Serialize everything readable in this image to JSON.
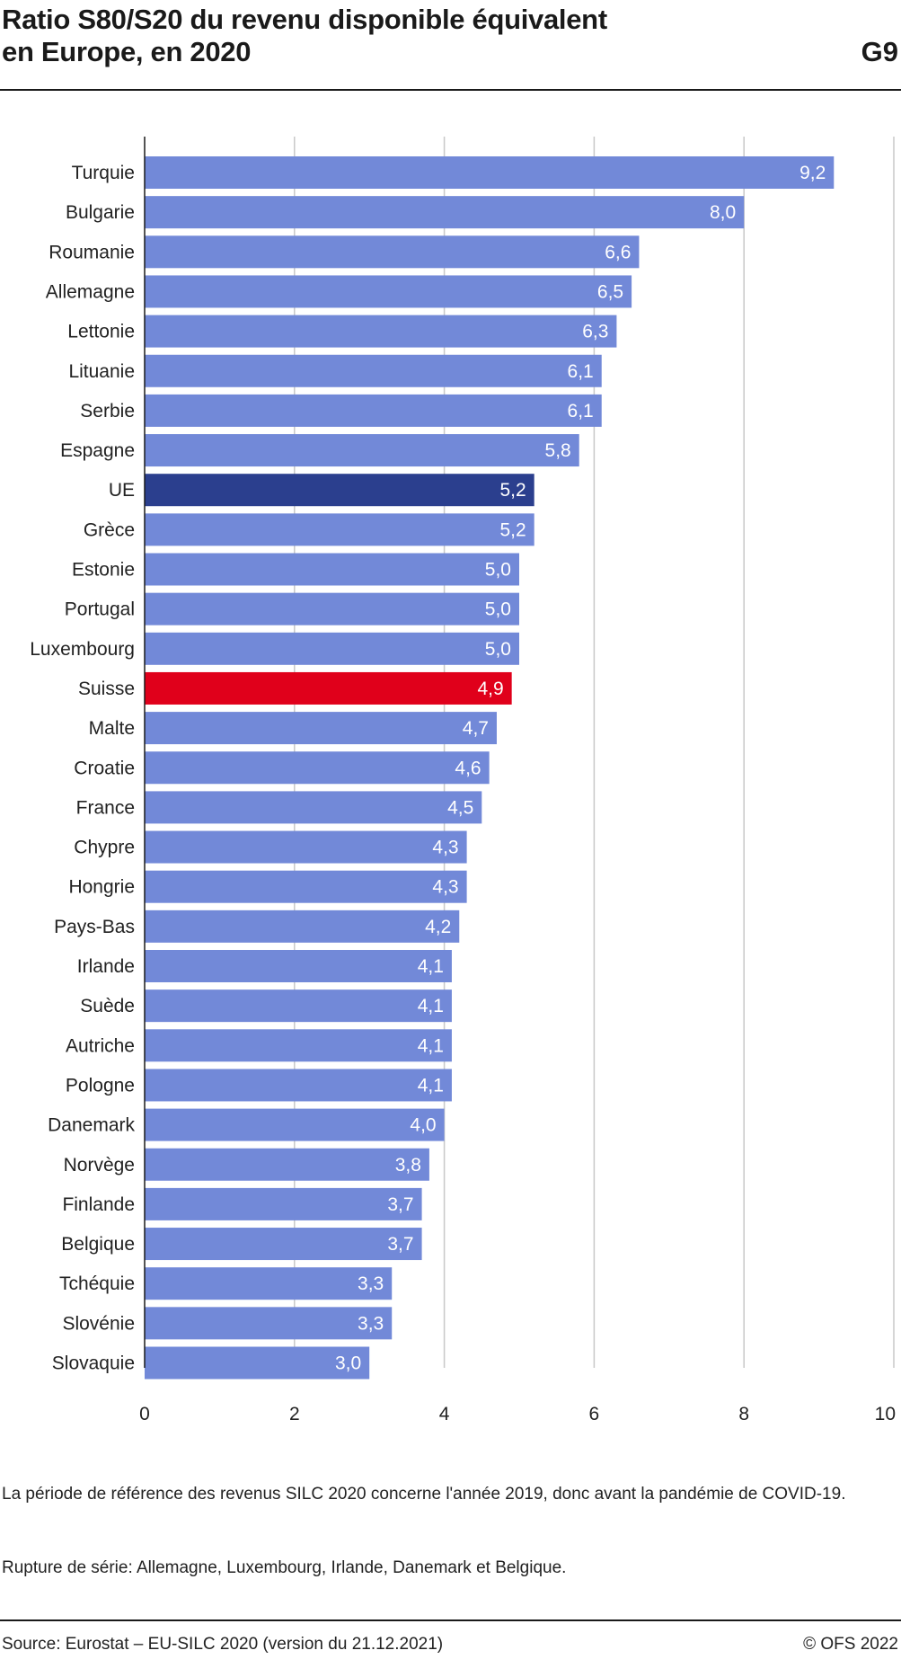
{
  "header": {
    "title_line1": "Ratio S80/S20 du revenu disponible équivalent",
    "title_line2": "en Europe, en 2020",
    "code": "G9"
  },
  "notes": {
    "period": "La période de référence des revenus SILC 2020 concerne l'année 2019, donc avant la pandémie de COVID-19.",
    "break": "Rupture de série: Allemagne, Luxembourg, Irlande, Danemark et Belgique."
  },
  "footer": {
    "source": "Source: Eurostat – EU-SILC 2020 (version du 21.12.2021)",
    "copyright": "© OFS 2022"
  },
  "colors": {
    "bar": "#7289d8",
    "eu": "#2b3f8e",
    "switzerland": "#e0001b",
    "grid": "#c8c8c8",
    "axis": "#1a1a1a"
  },
  "chart_data": {
    "type": "bar",
    "orientation": "horizontal",
    "categories": [
      "Turquie",
      "Bulgarie",
      "Roumanie",
      "Allemagne",
      "Lettonie",
      "Lituanie",
      "Serbie",
      "Espagne",
      "UE",
      "Grèce",
      "Estonie",
      "Portugal",
      "Luxembourg",
      "Suisse",
      "Malte",
      "Croatie",
      "France",
      "Chypre",
      "Hongrie",
      "Pays-Bas",
      "Irlande",
      "Suède",
      "Autriche",
      "Pologne",
      "Danemark",
      "Norvège",
      "Finlande",
      "Belgique",
      "Tchéquie",
      "Slovénie",
      "Slovaquie"
    ],
    "values": [
      9.2,
      8.0,
      6.6,
      6.5,
      6.3,
      6.1,
      6.1,
      5.8,
      5.2,
      5.2,
      5.0,
      5.0,
      5.0,
      4.9,
      4.7,
      4.6,
      4.5,
      4.3,
      4.3,
      4.2,
      4.1,
      4.1,
      4.1,
      4.1,
      4.0,
      3.8,
      3.7,
      3.7,
      3.3,
      3.3,
      3.0
    ],
    "value_labels": [
      "9,2",
      "8,0",
      "6,6",
      "6,5",
      "6,3",
      "6,1",
      "6,1",
      "5,8",
      "5,2",
      "5,2",
      "5,0",
      "5,0",
      "5,0",
      "4,9",
      "4,7",
      "4,6",
      "4,5",
      "4,3",
      "4,3",
      "4,2",
      "4,1",
      "4,1",
      "4,1",
      "4,1",
      "4,0",
      "3,8",
      "3,7",
      "3,7",
      "3,3",
      "3,3",
      "3,0"
    ],
    "highlights": {
      "UE": "eu",
      "Suisse": "switzerland"
    },
    "xlim": [
      0,
      10
    ],
    "xticks": [
      0,
      2,
      4,
      6,
      8,
      10
    ],
    "grid": true
  }
}
